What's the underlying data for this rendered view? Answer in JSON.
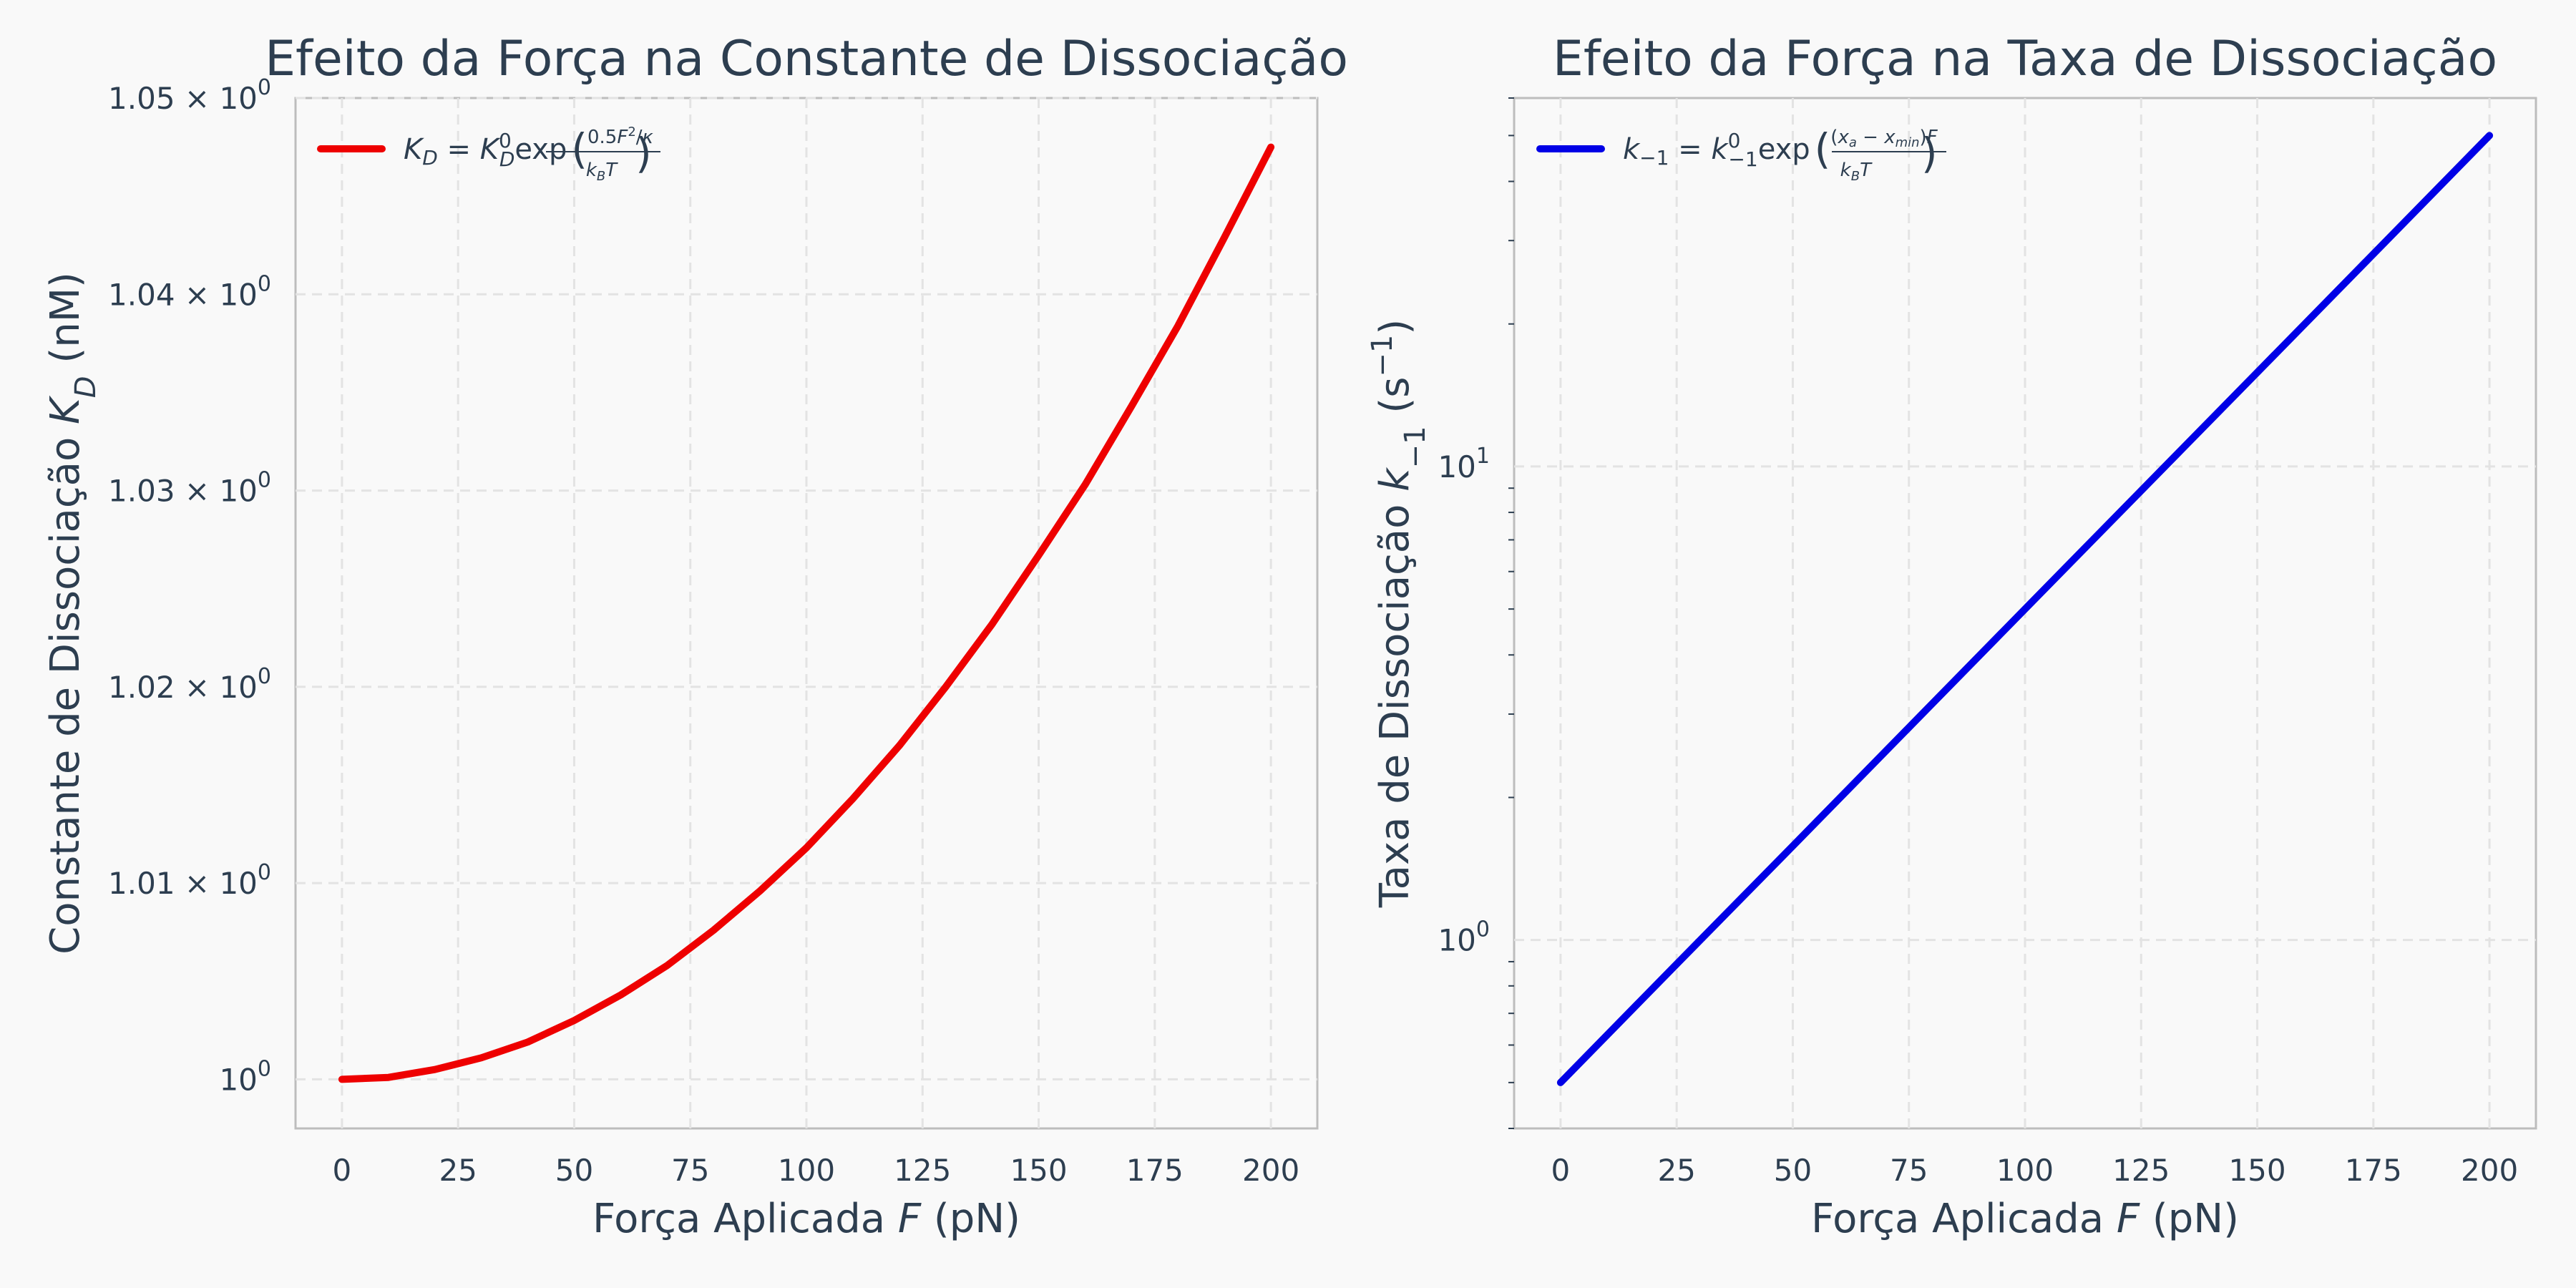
{
  "chart_data": [
    {
      "type": "line",
      "title": "Efeito da Força na Constante de Dissociação",
      "xlabel": "Força Aplicada F (pN)",
      "ylabel": "Constante de Dissociação K_D (nM)",
      "xlim": [
        -10,
        210
      ],
      "ylim": [
        0.9975,
        1.05
      ],
      "yscale": "linear",
      "x_ticks": [
        0,
        25,
        50,
        75,
        100,
        125,
        150,
        175,
        200
      ],
      "x_tick_labels": [
        "0",
        "25",
        "50",
        "75",
        "100",
        "125",
        "150",
        "175",
        "200"
      ],
      "y_ticks": [
        1.0,
        1.01,
        1.02,
        1.03,
        1.04,
        1.05
      ],
      "y_tick_labels": [
        {
          "base": "10",
          "exp": "0"
        },
        {
          "base": "1.01 × 10",
          "exp": "0"
        },
        {
          "base": "1.02 × 10",
          "exp": "0"
        },
        {
          "base": "1.03 × 10",
          "exp": "0"
        },
        {
          "base": "1.04 × 10",
          "exp": "0"
        },
        {
          "base": "1.05 × 10",
          "exp": "0"
        }
      ],
      "grid": true,
      "legend_position": "top-left",
      "series": [
        {
          "name": "K_D = K_D^0 exp(0.5F²/κ / k_BT)",
          "color": "#ee0000",
          "x": [
            0,
            10,
            20,
            30,
            40,
            50,
            60,
            70,
            80,
            90,
            100,
            110,
            120,
            130,
            140,
            150,
            160,
            170,
            180,
            190,
            200
          ],
          "y": [
            1.0,
            1.0001,
            1.0005,
            1.0011,
            1.0019,
            1.003,
            1.0043,
            1.0058,
            1.0076,
            1.0096,
            1.0118,
            1.0143,
            1.017,
            1.02,
            1.0232,
            1.0267,
            1.0303,
            1.0343,
            1.0384,
            1.0429,
            1.0475
          ]
        }
      ]
    },
    {
      "type": "line",
      "title": "Efeito da Força na Taxa de Dissociação",
      "xlabel": "Força Aplicada F (pN)",
      "ylabel": "Taxa de Dissociação k_−1 (s⁻¹)",
      "xlim": [
        -10,
        210
      ],
      "ylim": [
        0.4,
        60
      ],
      "yscale": "log",
      "x_ticks": [
        0,
        25,
        50,
        75,
        100,
        125,
        150,
        175,
        200
      ],
      "x_tick_labels": [
        "0",
        "25",
        "50",
        "75",
        "100",
        "125",
        "150",
        "175",
        "200"
      ],
      "y_ticks": [
        1,
        10
      ],
      "y_tick_labels": [
        {
          "base": "10",
          "exp": "0"
        },
        {
          "base": "10",
          "exp": "1"
        }
      ],
      "grid": true,
      "legend_position": "top-left",
      "series": [
        {
          "name": "k_−1 = k_−1^0 exp((x_a − x_min)F / k_BT)",
          "color": "#0000e6",
          "x": [
            0,
            25,
            50,
            75,
            100,
            125,
            150,
            175,
            200
          ],
          "y": [
            0.5,
            0.89,
            1.58,
            2.81,
            5.0,
            8.89,
            15.8,
            28.1,
            50.0
          ]
        }
      ]
    }
  ]
}
